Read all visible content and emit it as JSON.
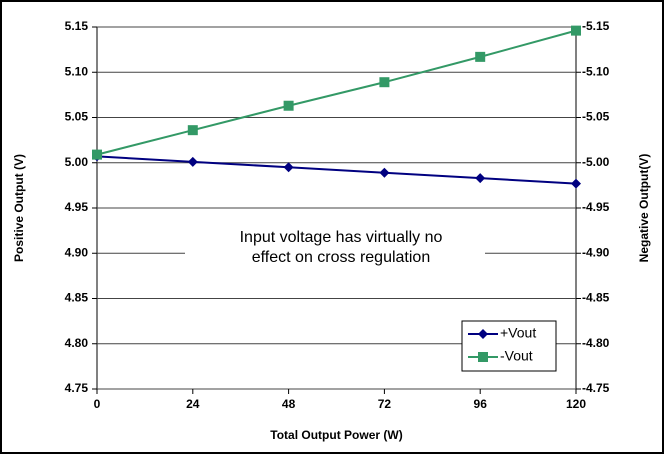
{
  "chart_data": {
    "type": "line",
    "x": [
      0,
      24,
      48,
      72,
      96,
      120
    ],
    "xlim": [
      0,
      120
    ],
    "xticks": [
      0,
      24,
      48,
      72,
      96,
      120
    ],
    "ylim": [
      4.75,
      5.15
    ],
    "yticks": [
      4.75,
      {
        "value": 4.8,
        "label": "4.80"
      },
      4.85,
      {
        "value": 4.9,
        "label": "4.90"
      },
      4.95,
      {
        "value": 5,
        "label": "5.00"
      },
      5.05,
      {
        "value": 5.1,
        "label": "5.10"
      },
      5.15
    ],
    "y2lim": [
      -4.75,
      -5.15
    ],
    "y2ticks": [
      -4.75,
      {
        "value": -4.8,
        "label": "-4.80"
      },
      -4.85,
      {
        "value": -4.9,
        "label": "-4.90"
      },
      -4.95,
      {
        "value": -5,
        "label": "-5.00"
      },
      -5.05,
      {
        "value": -5.1,
        "label": "-5.10"
      },
      -5.15
    ],
    "x_label": "Total Output Power (W)",
    "y_label": "Positive Output (V)",
    "y2_label": "Negative Output(V)",
    "annotation": [
      "Input voltage has virtually no",
      "effect on cross regulation"
    ],
    "grid": true,
    "legend": "lower right",
    "series": [
      {
        "name": "+Vout",
        "color": "#000080",
        "marker": "diamond",
        "values": [
          5.007,
          5.001,
          4.995,
          4.989,
          4.983,
          4.977
        ]
      },
      {
        "name": "-Vout",
        "color": "#339966",
        "marker": "square",
        "axis": "y2",
        "values": [
          -5.009,
          -5.036,
          -5.063,
          -5.089,
          -5.117,
          -5.146
        ]
      }
    ]
  }
}
